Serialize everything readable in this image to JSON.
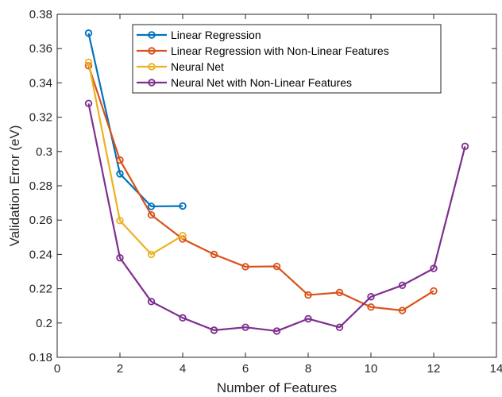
{
  "chart_data": {
    "type": "line",
    "title": "",
    "xlabel": "Number of Features",
    "ylabel": "Validation Error (eV)",
    "xlim": [
      0,
      14
    ],
    "ylim": [
      0.18,
      0.38
    ],
    "xticks": [
      0,
      2,
      4,
      6,
      8,
      10,
      12,
      14
    ],
    "yticks": [
      0.18,
      0.2,
      0.22,
      0.24,
      0.26,
      0.28,
      0.3,
      0.32,
      0.34,
      0.36,
      0.38
    ],
    "xtick_labels": [
      "0",
      "2",
      "4",
      "6",
      "8",
      "10",
      "12",
      "14"
    ],
    "ytick_labels": [
      "0.18",
      "0.2",
      "0.22",
      "0.24",
      "0.26",
      "0.28",
      "0.3",
      "0.32",
      "0.34",
      "0.36",
      "0.38"
    ],
    "grid": false,
    "legend_position": "top",
    "marker": "circle",
    "series": [
      {
        "name": "Linear Regression",
        "color": "#0072BD",
        "x": [
          1,
          2,
          3,
          4
        ],
        "y": [
          0.369,
          0.287,
          0.268,
          0.2682
        ]
      },
      {
        "name": "Linear Regression with Non-Linear Features",
        "color": "#D95319",
        "x": [
          1,
          2,
          3,
          4,
          5,
          6,
          7,
          8,
          9,
          10,
          11,
          12
        ],
        "y": [
          0.35,
          0.295,
          0.263,
          0.249,
          0.24,
          0.2328,
          0.233,
          0.2163,
          0.2178,
          0.2093,
          0.2073,
          0.2187
        ]
      },
      {
        "name": "Neural Net",
        "color": "#EDB120",
        "x": [
          1,
          2,
          3,
          4
        ],
        "y": [
          0.352,
          0.2597,
          0.24,
          0.251
        ]
      },
      {
        "name": "Neural Net with Non-Linear Features",
        "color": "#7E2F8E",
        "x": [
          1,
          2,
          3,
          4,
          5,
          6,
          7,
          8,
          9,
          10,
          11,
          12,
          13
        ],
        "y": [
          0.328,
          0.238,
          0.2125,
          0.203,
          0.1958,
          0.1975,
          0.1953,
          0.2025,
          0.1975,
          0.2153,
          0.222,
          0.2318,
          0.303
        ]
      }
    ]
  }
}
